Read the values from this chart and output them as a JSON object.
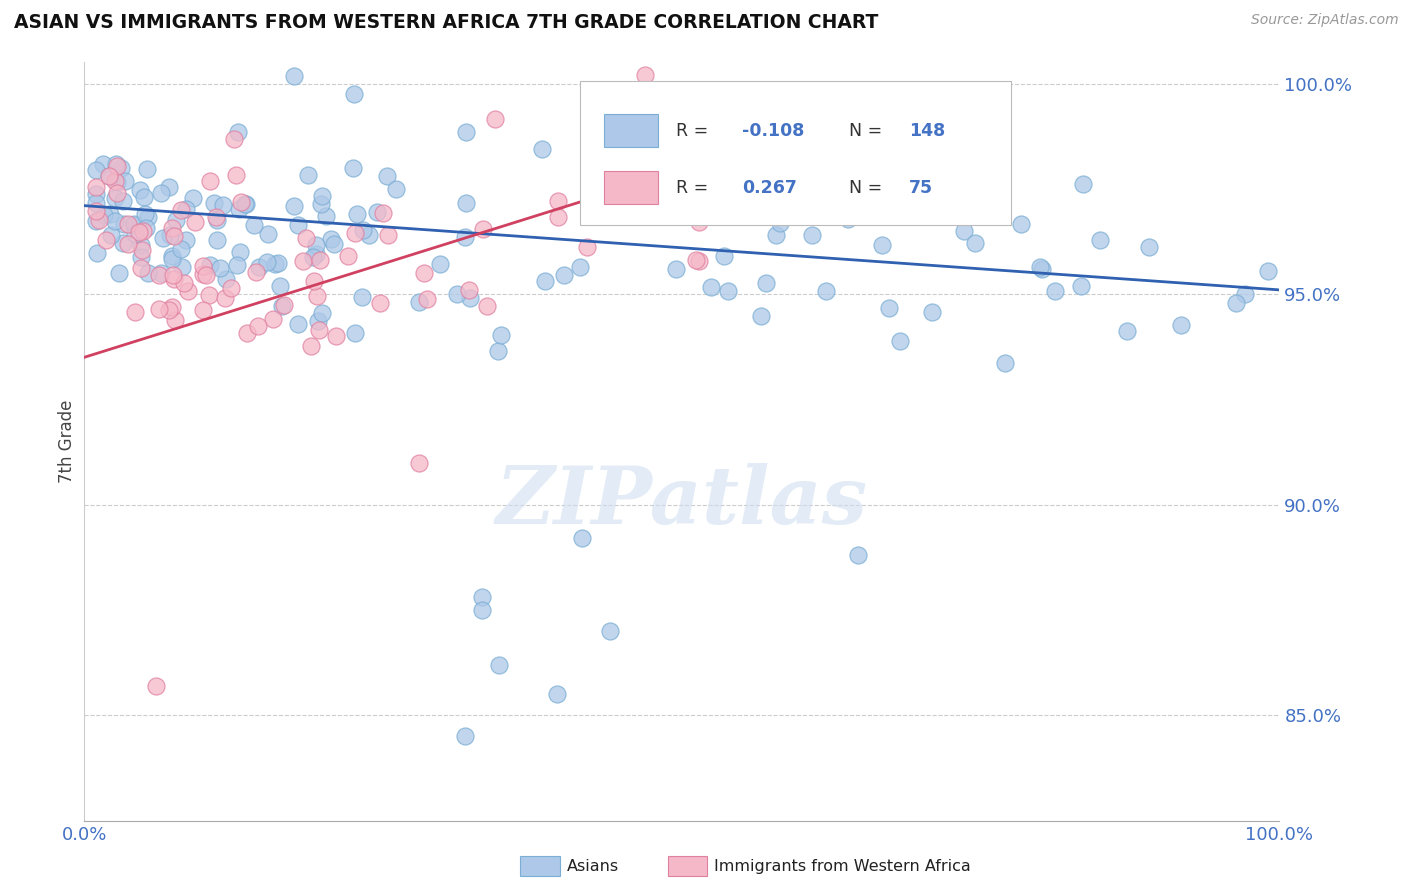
{
  "title": "ASIAN VS IMMIGRANTS FROM WESTERN AFRICA 7TH GRADE CORRELATION CHART",
  "source": "Source: ZipAtlas.com",
  "ylabel": "7th Grade",
  "xlim": [
    0.0,
    1.0
  ],
  "ylim": [
    0.825,
    1.005
  ],
  "yticks": [
    0.85,
    0.9,
    0.95,
    1.0
  ],
  "ytick_labels": [
    "85.0%",
    "90.0%",
    "95.0%",
    "100.0%"
  ],
  "xtick_positions": [
    0.0,
    1.0
  ],
  "xtick_labels": [
    "0.0%",
    "100.0%"
  ],
  "legend_r_asian": "-0.108",
  "legend_n_asian": "148",
  "legend_r_western": "0.267",
  "legend_n_western": "75",
  "color_asian_fill": "#adc8e8",
  "color_asian_edge": "#7aaed4",
  "color_western_fill": "#f5b8c8",
  "color_western_edge": "#e080a0",
  "trendline_asian": "#3060b0",
  "trendline_western": "#d04060",
  "watermark": "ZIPatlas",
  "asian_trendline_x0": 0.0,
  "asian_trendline_y0": 0.971,
  "asian_trendline_x1": 1.0,
  "asian_trendline_y1": 0.951,
  "western_trendline_x0": 0.0,
  "western_trendline_y0": 0.935,
  "western_trendline_x1": 0.45,
  "western_trendline_y1": 0.975
}
